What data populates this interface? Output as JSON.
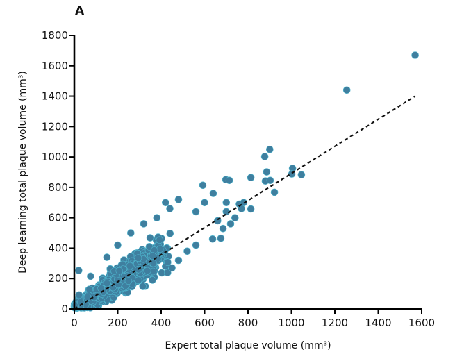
{
  "panel_label": "A",
  "chart_data": {
    "type": "scatter",
    "title": "",
    "xlabel": "Expert total plaque volume (mm³)",
    "ylabel": "Deep learning total plaque volume (mm³)",
    "xlim": [
      0,
      1600
    ],
    "ylim": [
      0,
      1800
    ],
    "x_ticks": [
      0,
      200,
      400,
      600,
      800,
      1000,
      1200,
      1400,
      1600
    ],
    "y_ticks": [
      0,
      200,
      400,
      600,
      800,
      1000,
      1200,
      1400,
      1600,
      1800
    ],
    "grid": false,
    "legend": null,
    "point_color": "#3f7f9f",
    "point_edge_color": "#4fb7cf",
    "regression_line": {
      "style": "dashed",
      "color": "#111111",
      "x": [
        0,
        1570
      ],
      "y": [
        0,
        1400
      ]
    },
    "outlier_points": [
      {
        "x": 1570,
        "y": 1670
      },
      {
        "x": 1255,
        "y": 1440
      },
      {
        "x": 900,
        "y": 1050
      },
      {
        "x": 877,
        "y": 1003
      },
      {
        "x": 886,
        "y": 902
      },
      {
        "x": 880,
        "y": 842
      },
      {
        "x": 902,
        "y": 846
      },
      {
        "x": 922,
        "y": 768
      },
      {
        "x": 1005,
        "y": 925
      },
      {
        "x": 1002,
        "y": 888
      },
      {
        "x": 1046,
        "y": 883
      },
      {
        "x": 813,
        "y": 865
      },
      {
        "x": 813,
        "y": 658
      },
      {
        "x": 698,
        "y": 851
      },
      {
        "x": 714,
        "y": 846
      },
      {
        "x": 592,
        "y": 814
      },
      {
        "x": 637,
        "y": 460
      },
      {
        "x": 675,
        "y": 465
      },
      {
        "x": 685,
        "y": 529
      },
      {
        "x": 760,
        "y": 690
      },
      {
        "x": 780,
        "y": 700
      },
      {
        "x": 740,
        "y": 600
      },
      {
        "x": 700,
        "y": 640
      },
      {
        "x": 770,
        "y": 660
      },
      {
        "x": 720,
        "y": 560
      },
      {
        "x": 660,
        "y": 580
      },
      {
        "x": 600,
        "y": 700
      },
      {
        "x": 560,
        "y": 640
      },
      {
        "x": 480,
        "y": 720
      },
      {
        "x": 420,
        "y": 700
      },
      {
        "x": 440,
        "y": 660
      },
      {
        "x": 380,
        "y": 600
      },
      {
        "x": 520,
        "y": 380
      },
      {
        "x": 560,
        "y": 420
      },
      {
        "x": 450,
        "y": 270
      },
      {
        "x": 480,
        "y": 320
      },
      {
        "x": 360,
        "y": 190
      },
      {
        "x": 20,
        "y": 253
      },
      {
        "x": 22,
        "y": 92
      },
      {
        "x": 75,
        "y": 215
      },
      {
        "x": 150,
        "y": 340
      },
      {
        "x": 200,
        "y": 420
      },
      {
        "x": 260,
        "y": 500
      },
      {
        "x": 320,
        "y": 560
      },
      {
        "x": 640,
        "y": 760
      },
      {
        "x": 700,
        "y": 700
      }
    ],
    "cluster": {
      "n": 1400,
      "x_range": [
        0,
        720
      ],
      "slope": 0.93,
      "spread_base": 25,
      "spread_scale": 0.16,
      "x_mode": 230
    }
  }
}
